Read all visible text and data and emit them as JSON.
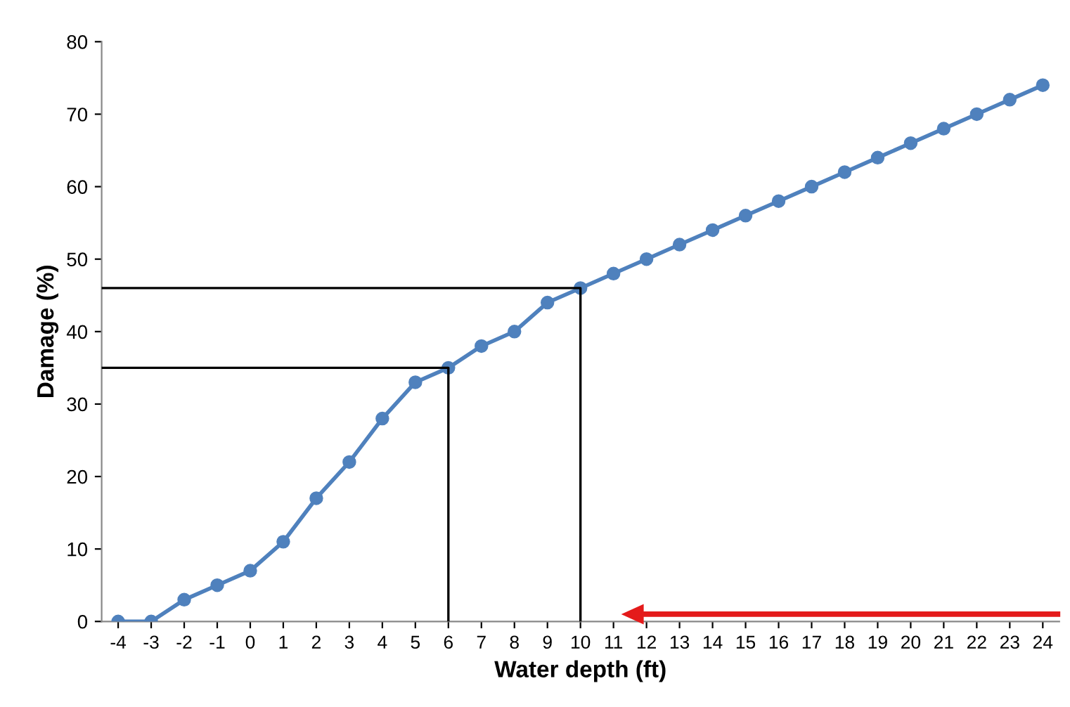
{
  "chart_data": {
    "type": "line",
    "xlabel": "Water depth (ft)",
    "ylabel": "Damage (%)",
    "x": [
      -4,
      -3,
      -2,
      -1,
      0,
      1,
      2,
      3,
      4,
      5,
      6,
      7,
      8,
      9,
      10,
      11,
      12,
      13,
      14,
      15,
      16,
      17,
      18,
      19,
      20,
      21,
      22,
      23,
      24
    ],
    "series": [
      {
        "color": "#4f81bd",
        "marker": "circle",
        "values": [
          0,
          0,
          3,
          5,
          7,
          11,
          17,
          22,
          28,
          33,
          35,
          38,
          40,
          44,
          46,
          48,
          50,
          52,
          54,
          56,
          58,
          60,
          62,
          64,
          66,
          68,
          70,
          72,
          74
        ]
      },
      {
        "type": "line",
        "color": "#000000",
        "marker": "none",
        "x": [
          -4.5,
          10,
          10
        ],
        "values": [
          46,
          46,
          0
        ]
      },
      {
        "type": "line",
        "color": "#000000",
        "marker": "none",
        "x": [
          -4.5,
          6,
          6
        ],
        "values": [
          35,
          35,
          0
        ]
      }
    ],
    "xlim": [
      -4.5,
      24.5
    ],
    "ylim": [
      0,
      80
    ],
    "xticks": [
      -4,
      -3,
      -2,
      -1,
      0,
      1,
      2,
      3,
      4,
      5,
      6,
      7,
      8,
      9,
      10,
      11,
      12,
      13,
      14,
      15,
      16,
      17,
      18,
      19,
      20,
      21,
      22,
      23,
      24
    ],
    "yticks": [
      0,
      10,
      20,
      30,
      40,
      50,
      60,
      70,
      80
    ],
    "grid": false,
    "legend": false
  }
}
